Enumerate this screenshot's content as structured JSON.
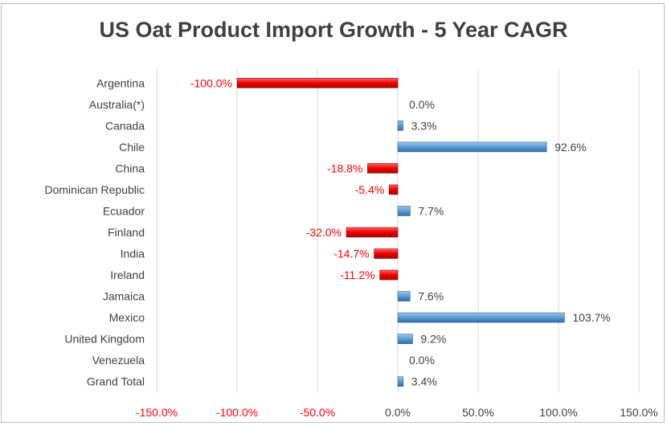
{
  "colors": {
    "positive": "#5b9bd5",
    "negative": "#ff0000",
    "negative_label": "#ff0000",
    "text": "#404040",
    "grid": "#d9d9d9"
  },
  "chart_data": {
    "type": "bar",
    "orientation": "horizontal",
    "title": "US Oat Product Import Growth - 5 Year CAGR",
    "categories": [
      "Argentina",
      "Australia(*)",
      "Canada",
      "Chile",
      "China",
      "Dominican Republic",
      "Ecuador",
      "Finland",
      "India",
      "Ireland",
      "Jamaica",
      "Mexico",
      "United Kingdom",
      "Venezuela",
      "Grand Total"
    ],
    "values": [
      -100.0,
      0.0,
      3.3,
      92.6,
      -18.8,
      -5.4,
      7.7,
      -32.0,
      -14.7,
      -11.2,
      7.6,
      103.7,
      9.2,
      0.0,
      3.4
    ],
    "value_labels": [
      "-100.0%",
      "0.0%",
      "3.3%",
      "92.6%",
      "-18.8%",
      "-5.4%",
      "7.7%",
      "-32.0%",
      "-14.7%",
      "-11.2%",
      "7.6%",
      "103.7%",
      "9.2%",
      "0.0%",
      "3.4%"
    ],
    "x_ticks": [
      -150,
      -100,
      -50,
      0,
      50,
      100,
      150
    ],
    "x_tick_labels": [
      "-150.0%",
      "-100.0%",
      "-50.0%",
      "0.0%",
      "50.0%",
      "100.0%",
      "150.0%"
    ],
    "xlim": [
      -150,
      150
    ],
    "grid": true,
    "legend": "none"
  }
}
